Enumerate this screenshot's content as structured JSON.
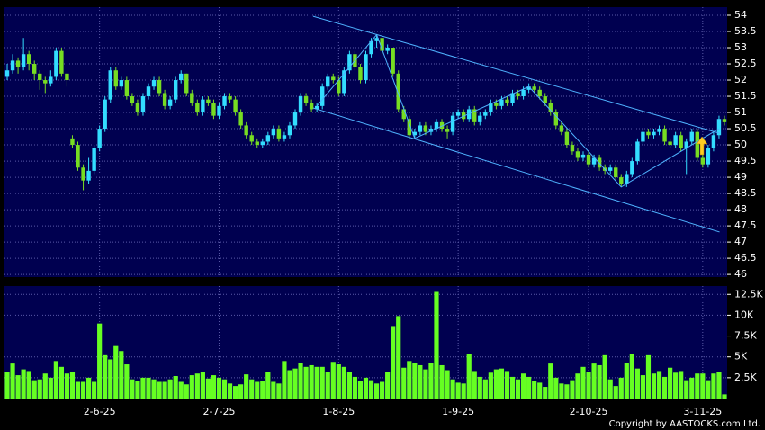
{
  "chart_data": {
    "type": "candlestick",
    "categories": [
      null,
      null,
      null,
      null,
      null,
      null,
      null,
      null,
      null,
      null,
      null,
      null,
      null,
      null,
      null,
      null,
      null,
      "2-6-25",
      null,
      null,
      null,
      null,
      null,
      null,
      null,
      null,
      null,
      null,
      null,
      null,
      null,
      null,
      null,
      null,
      null,
      null,
      null,
      null,
      null,
      "2-7-25",
      null,
      null,
      null,
      null,
      null,
      null,
      null,
      null,
      null,
      null,
      null,
      null,
      null,
      null,
      null,
      null,
      null,
      null,
      null,
      null,
      null,
      "1-8-25",
      null,
      null,
      null,
      null,
      null,
      null,
      null,
      null,
      null,
      null,
      null,
      null,
      null,
      null,
      null,
      null,
      null,
      null,
      null,
      null,
      null,
      "1-9-25",
      null,
      null,
      null,
      null,
      null,
      null,
      null,
      null,
      null,
      null,
      null,
      null,
      null,
      null,
      null,
      null,
      null,
      null,
      null,
      null,
      null,
      null,
      null,
      "2-10-25",
      null,
      null,
      null,
      null,
      null,
      null,
      null,
      null,
      null,
      null,
      null,
      null,
      null,
      null,
      null,
      null,
      null,
      null,
      null,
      null,
      "3-11-25",
      null,
      null,
      null,
      null
    ],
    "open": [
      52.1,
      52.3,
      52.6,
      52.4,
      52.8,
      52.5,
      52.2,
      52.0,
      51.9,
      52.1,
      52.9,
      52.2,
      50.2,
      50.0,
      49.3,
      48.9,
      49.2,
      49.9,
      50.5,
      51.4,
      52.3,
      51.8,
      52.0,
      51.5,
      51.3,
      51.0,
      51.5,
      51.8,
      52.0,
      51.6,
      51.2,
      51.4,
      52.0,
      52.2,
      51.6,
      51.3,
      51.0,
      51.4,
      51.3,
      50.9,
      51.2,
      51.5,
      51.4,
      51.0,
      50.6,
      50.3,
      50.1,
      50.0,
      50.1,
      50.3,
      50.5,
      50.2,
      50.3,
      50.6,
      51.0,
      51.5,
      51.3,
      51.1,
      51.2,
      51.8,
      52.1,
      52.0,
      51.6,
      52.3,
      52.8,
      52.4,
      52.0,
      52.8,
      53.2,
      53.3,
      52.9,
      53.0,
      52.2,
      51.1,
      50.8,
      50.3,
      50.4,
      50.6,
      50.4,
      50.5,
      50.7,
      50.5,
      50.4,
      50.9,
      51.0,
      50.8,
      51.1,
      50.7,
      50.9,
      51.0,
      51.3,
      51.2,
      51.4,
      51.3,
      51.6,
      51.5,
      51.7,
      51.8,
      51.7,
      51.5,
      51.3,
      51.0,
      50.6,
      50.4,
      50.0,
      49.8,
      49.6,
      49.7,
      49.4,
      49.6,
      49.3,
      49.2,
      49.3,
      49.0,
      48.8,
      49.1,
      49.5,
      50.1,
      50.4,
      50.3,
      50.4,
      50.5,
      50.1,
      50.0,
      50.3,
      49.9,
      50.1,
      50.4,
      49.6,
      49.4,
      49.9,
      50.3,
      50.8
    ],
    "high": [
      52.5,
      52.8,
      52.7,
      53.3,
      52.9,
      52.6,
      52.3,
      52.1,
      52.3,
      53.0,
      53.0,
      52.2,
      50.3,
      50.1,
      49.4,
      49.6,
      50.0,
      50.6,
      51.5,
      52.4,
      52.4,
      52.1,
      52.1,
      51.6,
      51.4,
      51.6,
      51.9,
      52.1,
      52.1,
      51.7,
      51.5,
      52.1,
      52.3,
      52.2,
      51.7,
      51.4,
      51.5,
      51.5,
      51.4,
      51.3,
      51.6,
      51.6,
      51.5,
      51.1,
      50.7,
      50.4,
      50.2,
      50.2,
      50.4,
      50.6,
      50.6,
      50.4,
      50.7,
      51.1,
      51.6,
      51.6,
      51.4,
      51.3,
      51.9,
      52.2,
      52.2,
      52.1,
      52.4,
      52.9,
      52.9,
      52.5,
      52.9,
      53.3,
      53.4,
      53.3,
      53.1,
      53.0,
      52.3,
      51.2,
      50.9,
      50.5,
      50.7,
      50.7,
      50.6,
      50.8,
      50.8,
      50.6,
      51.0,
      51.1,
      51.1,
      51.2,
      51.2,
      51.0,
      51.1,
      51.4,
      51.4,
      51.5,
      51.5,
      51.7,
      51.7,
      51.8,
      51.9,
      51.9,
      51.8,
      51.6,
      51.4,
      51.1,
      50.7,
      50.5,
      50.1,
      49.9,
      49.8,
      49.8,
      49.7,
      49.7,
      49.4,
      49.4,
      49.4,
      49.1,
      49.2,
      49.6,
      50.2,
      50.5,
      50.5,
      50.5,
      50.6,
      50.6,
      50.2,
      50.4,
      50.4,
      50.2,
      50.5,
      50.5,
      49.7,
      50.0,
      50.4,
      50.9,
      50.9
    ],
    "low": [
      52.0,
      52.2,
      52.2,
      52.3,
      52.3,
      52.0,
      51.7,
      51.6,
      51.8,
      52.0,
      52.1,
      51.8,
      49.9,
      49.2,
      48.6,
      48.8,
      49.1,
      49.8,
      50.4,
      51.3,
      51.7,
      51.7,
      51.4,
      51.2,
      50.9,
      50.9,
      51.4,
      51.7,
      51.5,
      51.1,
      51.1,
      51.3,
      51.9,
      51.5,
      51.2,
      50.9,
      50.9,
      51.2,
      50.8,
      50.8,
      51.1,
      51.3,
      50.9,
      50.5,
      50.2,
      50.0,
      49.9,
      49.9,
      50.0,
      50.2,
      50.1,
      50.1,
      50.2,
      50.5,
      50.9,
      51.2,
      51.0,
      51.0,
      51.1,
      51.7,
      51.9,
      51.5,
      51.5,
      52.2,
      52.3,
      51.9,
      51.9,
      52.7,
      53.0,
      52.8,
      52.8,
      52.1,
      51.0,
      50.7,
      50.2,
      50.2,
      50.3,
      50.3,
      50.3,
      50.4,
      50.4,
      50.2,
      50.3,
      50.8,
      50.7,
      50.7,
      50.6,
      50.6,
      50.8,
      50.9,
      51.1,
      51.1,
      51.2,
      51.2,
      51.4,
      51.4,
      51.6,
      51.6,
      51.4,
      51.2,
      50.9,
      50.5,
      50.3,
      49.9,
      49.7,
      49.5,
      49.5,
      49.3,
      49.3,
      49.2,
      49.1,
      49.1,
      48.9,
      48.7,
      48.7,
      49.0,
      49.4,
      50.0,
      50.2,
      50.2,
      50.3,
      50.0,
      49.9,
      49.9,
      49.8,
      49.1,
      50.0,
      49.5,
      49.3,
      49.3,
      49.8,
      50.2,
      50.6
    ],
    "close": [
      52.3,
      52.6,
      52.4,
      52.8,
      52.5,
      52.2,
      52.0,
      51.9,
      52.1,
      52.9,
      52.2,
      52.0,
      50.0,
      49.3,
      48.9,
      49.2,
      49.9,
      50.5,
      51.4,
      52.3,
      51.8,
      52.0,
      51.5,
      51.3,
      51.0,
      51.5,
      51.8,
      52.0,
      51.6,
      51.2,
      51.4,
      52.0,
      52.2,
      51.6,
      51.3,
      51.0,
      51.4,
      51.3,
      50.9,
      51.2,
      51.5,
      51.4,
      51.0,
      50.6,
      50.3,
      50.1,
      50.0,
      50.1,
      50.3,
      50.5,
      50.2,
      50.3,
      50.6,
      51.0,
      51.5,
      51.3,
      51.1,
      51.2,
      51.8,
      52.1,
      52.0,
      51.6,
      52.3,
      52.8,
      52.4,
      52.0,
      52.8,
      53.2,
      53.3,
      52.9,
      53.0,
      52.2,
      51.1,
      50.8,
      50.3,
      50.4,
      50.6,
      50.4,
      50.5,
      50.7,
      50.5,
      50.4,
      50.9,
      51.0,
      50.8,
      51.1,
      50.7,
      50.9,
      51.0,
      51.3,
      51.2,
      51.4,
      51.3,
      51.6,
      51.5,
      51.7,
      51.8,
      51.7,
      51.5,
      51.3,
      51.0,
      50.6,
      50.4,
      50.0,
      49.8,
      49.6,
      49.7,
      49.4,
      49.6,
      49.3,
      49.2,
      49.3,
      49.0,
      48.8,
      49.1,
      49.5,
      50.1,
      50.4,
      50.3,
      50.4,
      50.5,
      50.1,
      50.0,
      50.3,
      49.9,
      50.1,
      50.4,
      49.6,
      49.4,
      49.9,
      50.3,
      50.8,
      50.7
    ],
    "volume": [
      3200,
      4200,
      2800,
      3500,
      3300,
      2200,
      2300,
      3000,
      2500,
      4500,
      3800,
      3000,
      3200,
      2000,
      2000,
      2500,
      2000,
      9000,
      5200,
      4700,
      6300,
      5700,
      4100,
      2300,
      2100,
      2500,
      2500,
      2300,
      2000,
      2000,
      2300,
      2700,
      2000,
      1700,
      2800,
      3000,
      3200,
      2400,
      2800,
      2500,
      2300,
      1800,
      1500,
      1700,
      2900,
      2300,
      2000,
      2100,
      3200,
      2000,
      1800,
      4500,
      3400,
      3600,
      4300,
      3800,
      4000,
      3800,
      3800,
      3200,
      4400,
      4100,
      3800,
      3200,
      2600,
      2100,
      2500,
      2200,
      1800,
      2000,
      3200,
      8700,
      9900,
      3700,
      4500,
      4300,
      4000,
      3500,
      4300,
      12800,
      4000,
      3400,
      2300,
      1900,
      1800,
      5400,
      3300,
      2600,
      2300,
      3100,
      3500,
      3600,
      3300,
      2600,
      2300,
      3000,
      2600,
      2100,
      1900,
      1400,
      4200,
      2500,
      1800,
      1700,
      2200,
      3000,
      3800,
      3200,
      4200,
      4000,
      5200,
      2300,
      1500,
      2500,
      4300,
      5400,
      3600,
      2800,
      5200,
      3000,
      3300,
      2600,
      3700,
      3100,
      3300,
      2200,
      2500,
      3000,
      3000,
      2200,
      3000,
      3200,
      500
    ],
    "up_color": "#33ddff",
    "down_color": "#77dd22",
    "volume_color": "#66ff22",
    "ylim": [
      45.92,
      54.25
    ],
    "yticks": [
      46,
      46.5,
      47,
      47.5,
      48,
      48.5,
      49,
      49.5,
      50,
      50.5,
      51,
      51.5,
      52,
      52.5,
      53,
      53.5,
      54
    ],
    "vlim": [
      0,
      13500
    ],
    "vticks": [
      {
        "value": 2500,
        "label": "2.5K"
      },
      {
        "value": 5000,
        "label": "5K"
      },
      {
        "value": 7500,
        "label": "7.5K"
      },
      {
        "value": 10000,
        "label": "10K"
      },
      {
        "value": 12500,
        "label": "12.5K"
      }
    ],
    "trendlines": [
      {
        "x": [
          56.3,
          131.1
        ],
        "y": [
          51.14,
          47.31
        ],
        "color": "#4fb3ff"
      },
      {
        "x": [
          56.3,
          131.1
        ],
        "y": [
          53.97,
          50.36
        ],
        "color": "#4fb3ff"
      },
      {
        "x": [
          57,
          68,
          75,
          96,
          113,
          131
        ],
        "y": [
          51.2,
          53.4,
          50.2,
          51.8,
          48.7,
          50.5
        ],
        "color": "#4fb3ff"
      }
    ],
    "grid": true,
    "copyright": "Copyright by AASTOCKS.com Ltd."
  }
}
